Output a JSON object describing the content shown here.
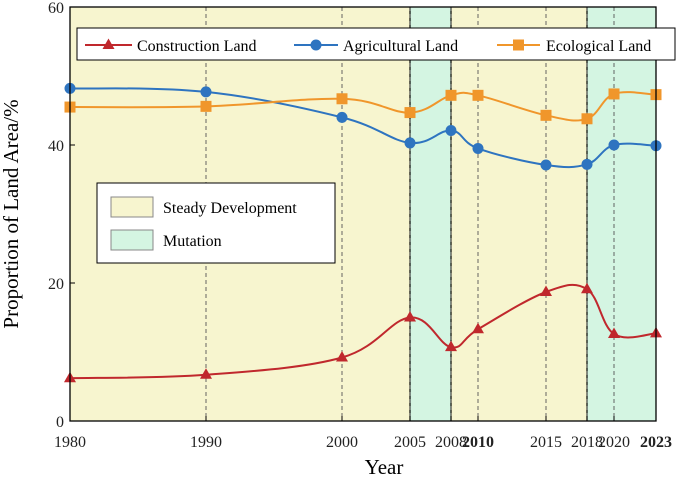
{
  "chart_data": {
    "type": "line",
    "title": "",
    "xlabel": "Year",
    "ylabel": "Proportion of Land Area/%",
    "x": [
      1980,
      1990,
      2000,
      2005,
      2008,
      2010,
      2015,
      2018,
      2020,
      2023
    ],
    "x_tick_labels": [
      "1980",
      "1990",
      "2000",
      "2005",
      "2008",
      "2010",
      "2015",
      "2018",
      "2020",
      "2023"
    ],
    "highlighted_ticks": [
      "2010",
      "2023"
    ],
    "highlight_color": "#b83030",
    "ylim": [
      0,
      60
    ],
    "y_ticks": [
      0,
      20,
      40,
      60
    ],
    "series": [
      {
        "name": "Construction Land",
        "marker": "triangle",
        "color": "#c0282d",
        "values": [
          6.2,
          6.7,
          9.2,
          15.0,
          10.7,
          13.3,
          18.7,
          19.1,
          12.6,
          12.7
        ]
      },
      {
        "name": "Agricultural Land",
        "marker": "circle",
        "color": "#2e74c0",
        "values": [
          48.2,
          47.7,
          44.0,
          40.3,
          42.1,
          39.5,
          37.1,
          37.2,
          40.0,
          39.9
        ]
      },
      {
        "name": "Ecological Land",
        "marker": "square",
        "color": "#f0962b",
        "values": [
          45.5,
          45.6,
          46.7,
          44.7,
          47.2,
          47.2,
          44.3,
          43.8,
          47.4,
          47.3
        ]
      }
    ],
    "bands": [
      {
        "label": "Steady Development",
        "from": 1980,
        "to": 2005,
        "color": "#f7f5cf"
      },
      {
        "label": "Mutation",
        "from": 2005,
        "to": 2008,
        "color": "#d4f5e2"
      },
      {
        "label": "Steady Development",
        "from": 2008,
        "to": 2018,
        "color": "#f7f5cf"
      },
      {
        "label": "Mutation",
        "from": 2018,
        "to": 2020,
        "color": "#d4f5e2"
      },
      {
        "label": "Mutation",
        "from": 2020,
        "to": 2023,
        "color": "#d4f5e2"
      }
    ],
    "period_legend": [
      {
        "label": "Steady Development",
        "color": "#f7f5cf"
      },
      {
        "label": "Mutation",
        "color": "#d4f5e2"
      }
    ],
    "legend_position": "top"
  }
}
